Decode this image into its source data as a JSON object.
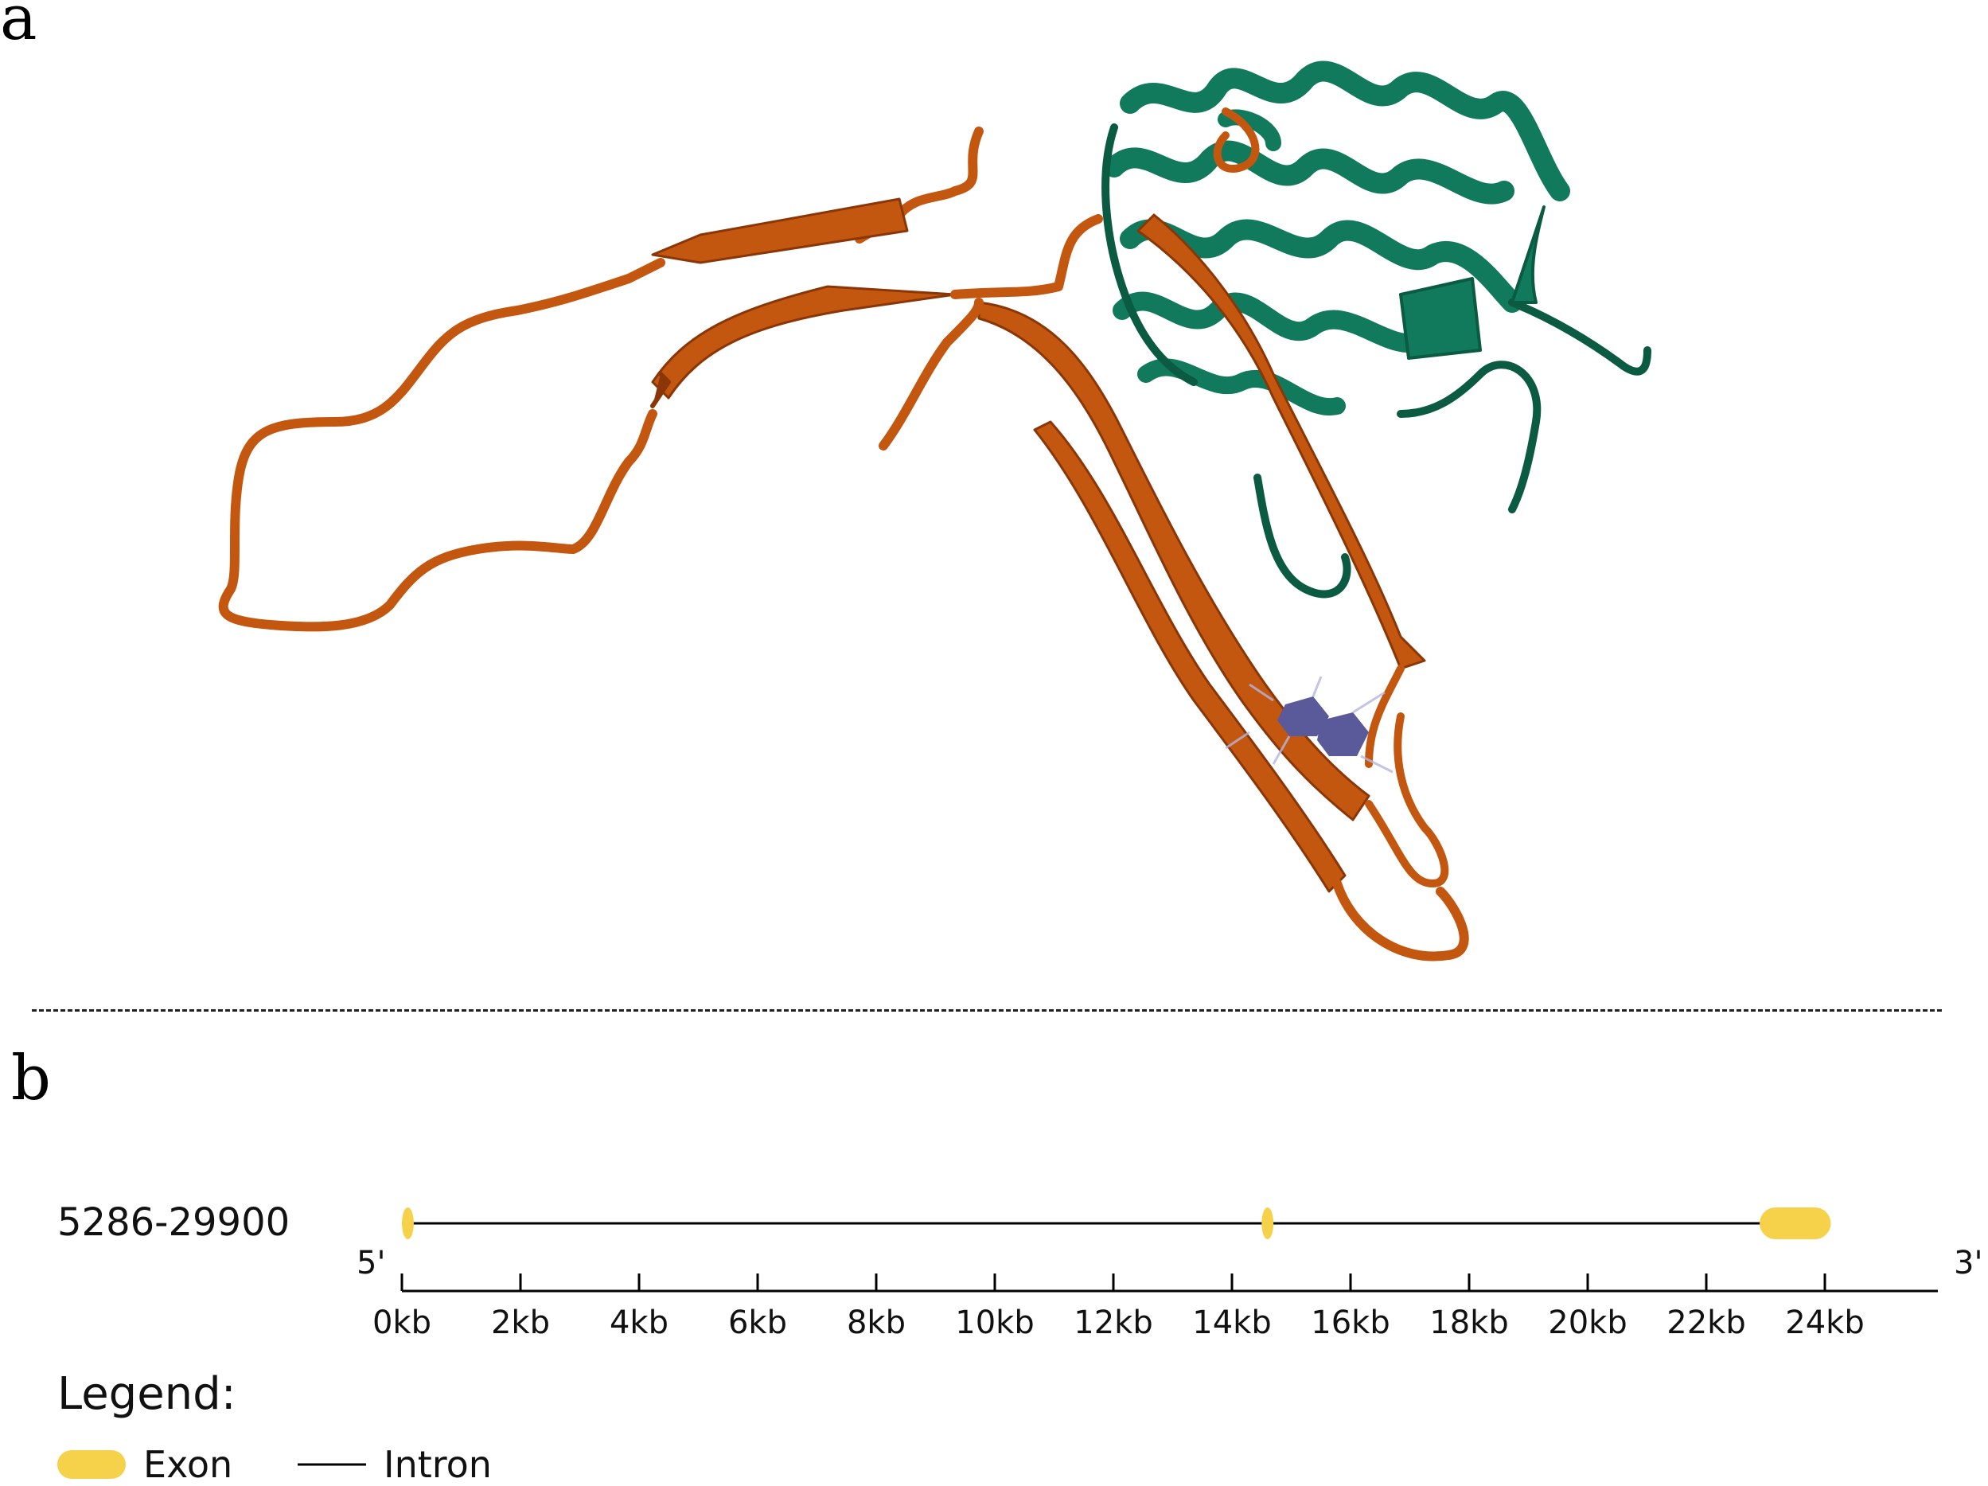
{
  "panels": {
    "a": {
      "label": "a"
    },
    "b": {
      "label": "b"
    }
  },
  "colors": {
    "strand": "#c4570f",
    "strand_dark": "#8a3606",
    "helix": "#127a5c",
    "helix_dark": "#0b5a42",
    "ligand": "#5a5a9a",
    "exon": "#f6d24a",
    "intron": "#000000"
  },
  "gene": {
    "id": "5286-29900",
    "five_prime": "5'",
    "three_prime": "3'",
    "axis_ticks": [
      "0kb",
      "2kb",
      "4kb",
      "6kb",
      "8kb",
      "10kb",
      "12kb",
      "14kb",
      "16kb",
      "18kb",
      "20kb",
      "22kb",
      "24kb"
    ],
    "axis_max_kb": 26,
    "exons": [
      {
        "start_kb": 0.0,
        "end_kb": 0.2
      },
      {
        "start_kb": 14.5,
        "end_kb": 14.7
      },
      {
        "start_kb": 22.9,
        "end_kb": 24.1
      }
    ]
  },
  "legend": {
    "title": "Legend:",
    "exon_label": "Exon",
    "intron_label": "Intron"
  }
}
